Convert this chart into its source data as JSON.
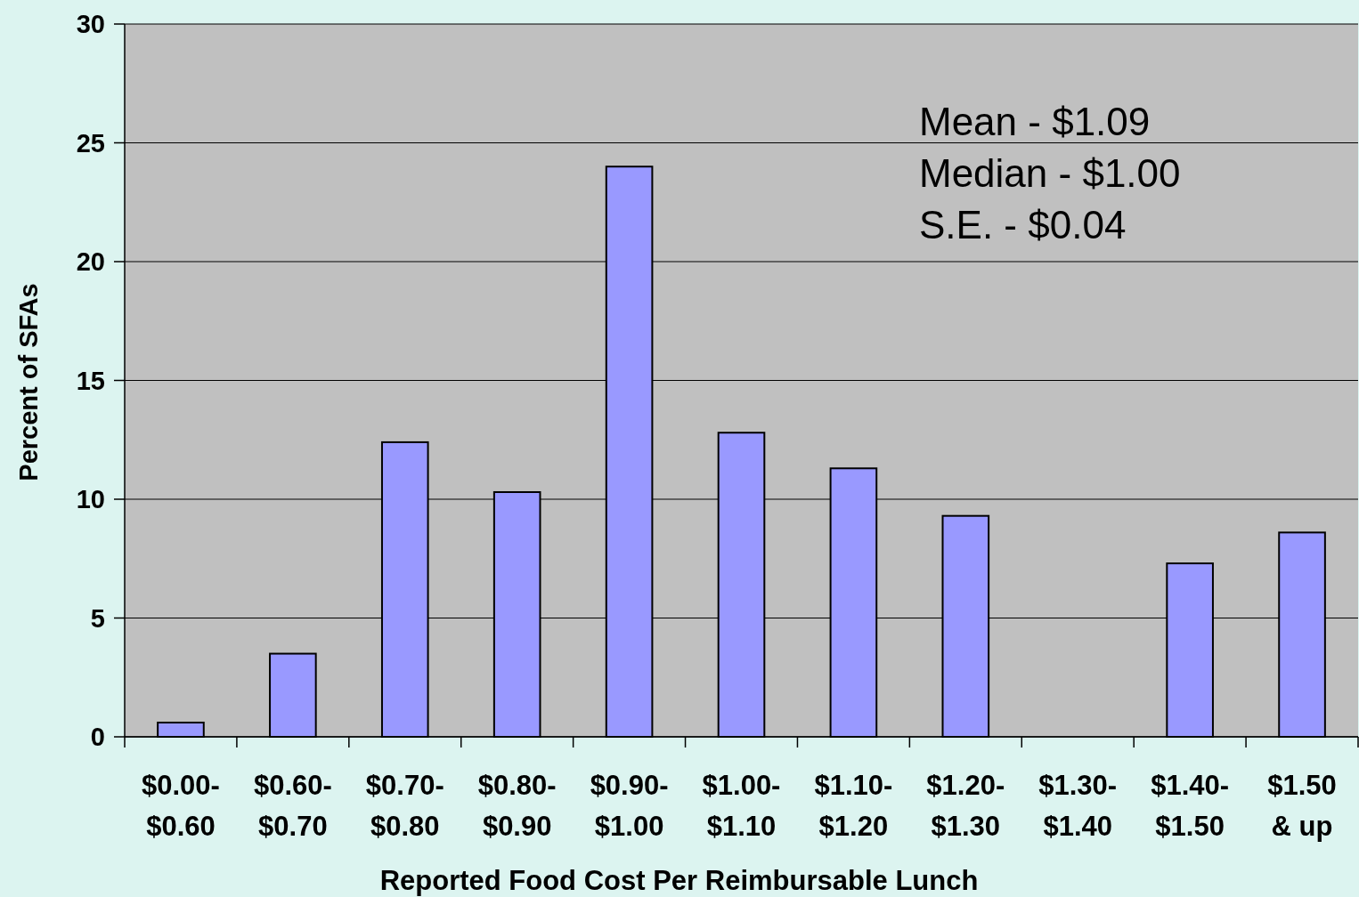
{
  "chart_data": {
    "type": "bar",
    "xlabel": "Reported Food Cost Per Reimbursable Lunch",
    "ylabel": "Percent of SFAs",
    "categories": [
      "$0.00-\n$0.60",
      "$0.60-\n$0.70",
      "$0.70-\n$0.80",
      "$0.80-\n$0.90",
      "$0.90-\n$1.00",
      "$1.00-\n$1.10",
      "$1.10-\n$1.20",
      "$1.20-\n$1.30",
      "$1.30-\n$1.40",
      "$1.40-\n$1.50",
      "$1.50\n& up"
    ],
    "values": [
      0.6,
      3.5,
      12.4,
      10.3,
      24.0,
      12.8,
      11.3,
      9.3,
      0,
      7.3,
      8.6
    ],
    "color": "#9999ff",
    "ylim": [
      0,
      30
    ],
    "yticks": [
      0,
      5,
      10,
      15,
      20,
      25,
      30
    ],
    "grid": "y",
    "annotations": [
      "Mean - $1.09",
      "Median - $1.00",
      "S.E. - $0.04"
    ]
  }
}
